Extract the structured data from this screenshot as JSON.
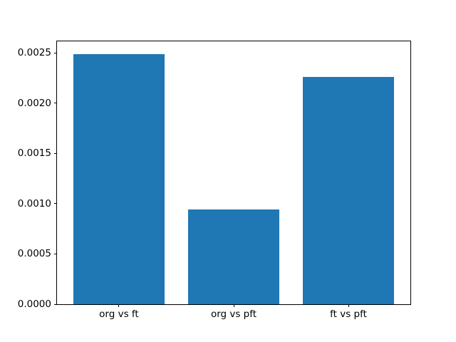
{
  "chart_data": {
    "type": "bar",
    "title": "",
    "xlabel": "",
    "ylabel": "",
    "categories": [
      "org vs ft",
      "org vs pft",
      "ft vs pft"
    ],
    "values": [
      0.00249,
      0.00094,
      0.00226
    ],
    "ylim": [
      0,
      0.002615
    ],
    "yticks": [
      0.0,
      0.0005,
      0.001,
      0.0015,
      0.002,
      0.0025
    ],
    "ytick_labels": [
      "0.0000",
      "0.0005",
      "0.0010",
      "0.0015",
      "0.0020",
      "0.0025"
    ],
    "bar_color": "#1f77b4",
    "spine_color": "#000000",
    "background_color": "#ffffff",
    "grid": false,
    "legend": null
  }
}
